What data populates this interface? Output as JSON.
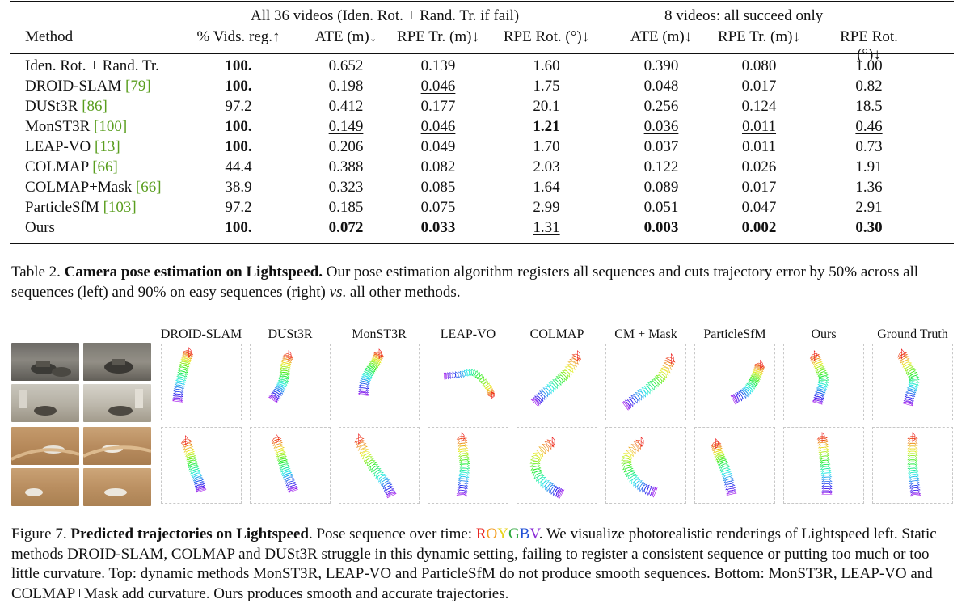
{
  "table": {
    "group_left": "All 36 videos (Iden. Rot. + Rand. Tr. if fail)",
    "group_right": "8 videos: all succeed only",
    "headers": [
      "Method",
      "% Vids. reg.↑",
      "ATE (m)↓",
      "RPE Tr. (m)↓",
      "RPE Rot. (°)↓",
      "ATE (m)↓",
      "RPE Tr. (m)↓",
      "RPE Rot. (°)↓"
    ],
    "rows": [
      {
        "method": "Iden. Rot. + Rand. Tr.",
        "ref": "",
        "vals": [
          "100.",
          "0.652",
          "0.139",
          "1.60",
          "0.390",
          "0.080",
          "1.00"
        ],
        "bold": [
          0
        ],
        "under": []
      },
      {
        "method": "DROID-SLAM ",
        "ref": "[79]",
        "vals": [
          "100.",
          "0.198",
          "0.046",
          "1.75",
          "0.048",
          "0.017",
          "0.82"
        ],
        "bold": [
          0
        ],
        "under": [
          2
        ]
      },
      {
        "method": "DUSt3R ",
        "ref": "[86]",
        "vals": [
          "97.2",
          "0.412",
          "0.177",
          "20.1",
          "0.256",
          "0.124",
          "18.5"
        ],
        "bold": [],
        "under": []
      },
      {
        "method": "MonST3R ",
        "ref": "[100]",
        "vals": [
          "100.",
          "0.149",
          "0.046",
          "1.21",
          "0.036",
          "0.011",
          "0.46"
        ],
        "bold": [
          0,
          3
        ],
        "under": [
          1,
          2,
          4,
          5,
          6
        ]
      },
      {
        "method": "LEAP-VO ",
        "ref": "[13]",
        "vals": [
          "100.",
          "0.206",
          "0.049",
          "1.70",
          "0.037",
          "0.011",
          "0.73"
        ],
        "bold": [
          0
        ],
        "under": [
          5
        ]
      },
      {
        "method": "COLMAP ",
        "ref": "[66]",
        "vals": [
          "44.4",
          "0.388",
          "0.082",
          "2.03",
          "0.122",
          "0.026",
          "1.91"
        ],
        "bold": [],
        "under": []
      },
      {
        "method": "COLMAP+Mask ",
        "ref": "[66]",
        "vals": [
          "38.9",
          "0.323",
          "0.085",
          "1.64",
          "0.089",
          "0.017",
          "1.36"
        ],
        "bold": [],
        "under": []
      },
      {
        "method": "ParticleSfM ",
        "ref": "[103]",
        "vals": [
          "97.2",
          "0.185",
          "0.075",
          "2.99",
          "0.051",
          "0.047",
          "2.91"
        ],
        "bold": [],
        "under": []
      },
      {
        "method": "Ours",
        "ref": "",
        "vals": [
          "100.",
          "0.072",
          "0.033",
          "1.31",
          "0.003",
          "0.002",
          "0.30"
        ],
        "bold": [
          0,
          1,
          2,
          4,
          5,
          6
        ],
        "under": [
          3
        ]
      }
    ]
  },
  "table_caption": {
    "label": "Table 2. ",
    "title": "Camera pose estimation on Lightspeed.",
    "text": " Our pose estimation algorithm registers all sequences and cuts trajectory error by 50% across all sequences (left) and 90% on easy sequences (right) ",
    "vs": "vs",
    "tail": ". all other methods."
  },
  "figure": {
    "columns": [
      "DROID-SLAM",
      "DUSt3R",
      "MonST3R",
      "LEAP-VO",
      "COLMAP",
      "CM + Mask",
      "ParticleSfM",
      "Ours",
      "Ground Truth"
    ],
    "roygbv": {
      "letters": [
        "R",
        "O",
        "Y",
        "G",
        "B",
        "V"
      ],
      "colors": [
        "#e8231d",
        "#f39a1b",
        "#e7d21b",
        "#2aa53a",
        "#2150d6",
        "#8a2bd6"
      ]
    }
  },
  "figure_caption": {
    "label": "Figure 7. ",
    "title": "Predicted trajectories on Lightspeed",
    "pre": ". Pose sequence over time: ",
    "post": ". We visualize photorealistic renderings of Lightspeed left. Static methods DROID-SLAM, COLMAP and DUSt3R struggle in this dynamic setting, failing to register a consistent sequence or putting too much or too little curvature. Top: dynamic methods MonST3R, LEAP-VO and ParticleSfM do not produce smooth sequences. Bottom: MonST3R, LEAP-VO and COLMAP+Mask add curvature. Ours produces smooth and accurate trajectories."
  }
}
